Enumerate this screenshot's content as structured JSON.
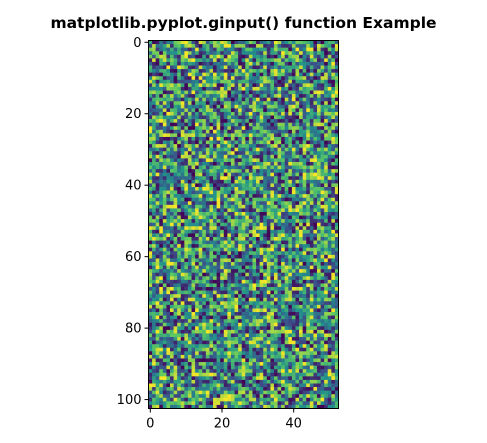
{
  "chart_data": {
    "type": "heatmap",
    "title": "matplotlib.pyplot.ginput() function Example",
    "xlabel": "",
    "ylabel": "",
    "columns": 53,
    "rows": 103,
    "xlim": [
      -0.5,
      52.5
    ],
    "ylim": [
      102.5,
      -0.5
    ],
    "x_ticks": [
      0,
      20,
      40
    ],
    "y_ticks": [
      0,
      20,
      40,
      60,
      80,
      100
    ],
    "colormap": "viridis",
    "colormap_colors": [
      "#440154",
      "#3b528b",
      "#21918c",
      "#5ec962",
      "#fde725"
    ],
    "value_range": [
      0,
      1
    ],
    "values_note_random": true,
    "grid": false,
    "legend": "none"
  }
}
